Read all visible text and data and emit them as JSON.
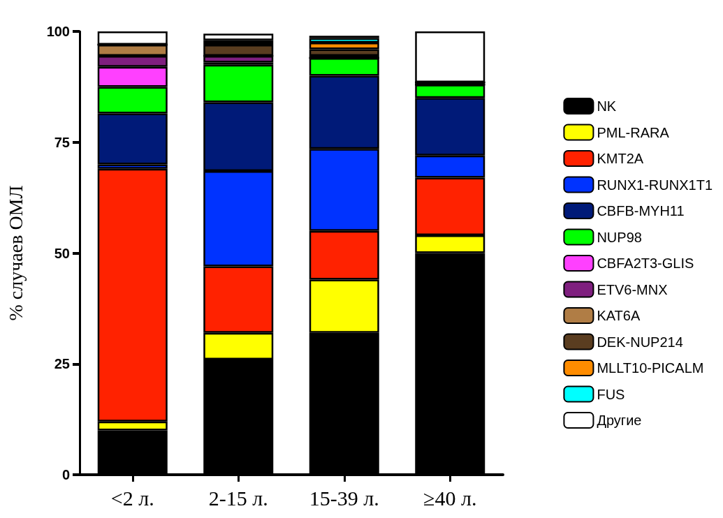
{
  "chart_data": {
    "type": "bar",
    "stacked": true,
    "ylabel": "% случаев ОМЛ",
    "categories": [
      "<2 л.",
      "2-15 л.",
      "15-39 л.",
      "≥40 л."
    ],
    "ylim": [
      0,
      100
    ],
    "yticks": [
      0,
      25,
      50,
      75,
      100
    ],
    "grid": false,
    "legend": "right",
    "series": [
      {
        "name": "NK",
        "color": "#000000",
        "values": [
          10,
          26,
          32,
          50
        ]
      },
      {
        "name": "PML-RARA",
        "color": "#ffff00",
        "values": [
          2,
          6,
          12,
          4
        ]
      },
      {
        "name": "KMT2A",
        "color": "#ff2200",
        "values": [
          57,
          15,
          11,
          13
        ]
      },
      {
        "name": "RUNX1-RUNX1T1",
        "color": "#0033ff",
        "values": [
          1,
          21.5,
          18.5,
          5
        ]
      },
      {
        "name": "CBFB-MYH11",
        "color": "#001a78",
        "values": [
          11.5,
          15.5,
          16.5,
          13
        ]
      },
      {
        "name": "NUP98",
        "color": "#00ff00",
        "values": [
          6,
          8.5,
          4,
          3
        ]
      },
      {
        "name": "CBFA2T3-GLIS",
        "color": "#ff40ff",
        "values": [
          4.5,
          0.5,
          0,
          0
        ]
      },
      {
        "name": "ETV6-MNX",
        "color": "#7f1f7f",
        "values": [
          2.5,
          1.5,
          0,
          0
        ]
      },
      {
        "name": "KAT6A",
        "color": "#b07d45",
        "values": [
          2.5,
          0,
          0.5,
          0.5
        ]
      },
      {
        "name": "DEK-NUP214",
        "color": "#5a3d20",
        "values": [
          0,
          2.5,
          1.5,
          0
        ]
      },
      {
        "name": "MLLT10-PICALM",
        "color": "#ff8c00",
        "values": [
          0,
          0.5,
          1.5,
          0
        ]
      },
      {
        "name": "FUS",
        "color": "#00ffff",
        "values": [
          0,
          0.5,
          1,
          0
        ]
      },
      {
        "name": "Другие",
        "color": "#ffffff",
        "values": [
          3,
          1.5,
          0.5,
          11.5
        ]
      }
    ]
  }
}
